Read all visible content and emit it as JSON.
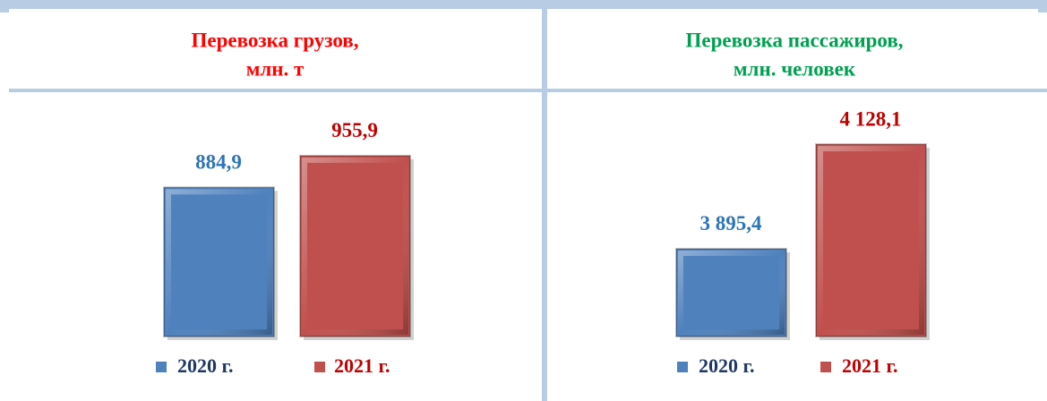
{
  "chart_data": [
    {
      "type": "bar",
      "title": [
        "Перевозка грузов,",
        "млн. т"
      ],
      "title_color": "#ff0000",
      "categories": [
        null
      ],
      "series": [
        {
          "name": "2020 г.",
          "color": "#4f81bd",
          "label_color": "#2e75b6",
          "legend_color": "#1f3864",
          "values": [
            884.9
          ],
          "value_labels": [
            "884,9"
          ]
        },
        {
          "name": "2021 г.",
          "color": "#c0504d",
          "label_color": "#c00000",
          "legend_color": "#c00000",
          "values": [
            955.9
          ],
          "value_labels": [
            "955,9"
          ]
        }
      ],
      "ylim": [
        550,
        1000
      ]
    },
    {
      "type": "bar",
      "title": [
        "Перевозка пассажиров,",
        "млн. человек"
      ],
      "title_color": "#00a050",
      "categories": [
        null
      ],
      "series": [
        {
          "name": "2020 г.",
          "color": "#4f81bd",
          "label_color": "#2e75b6",
          "legend_color": "#1f3864",
          "values": [
            3895.4
          ],
          "value_labels": [
            "3 895,4"
          ]
        },
        {
          "name": "2021 г.",
          "color": "#c0504d",
          "label_color": "#c00000",
          "legend_color": "#c00000",
          "values": [
            4128.1
          ],
          "value_labels": [
            "4 128,1"
          ]
        }
      ],
      "ylim": [
        3700,
        4200
      ]
    }
  ]
}
